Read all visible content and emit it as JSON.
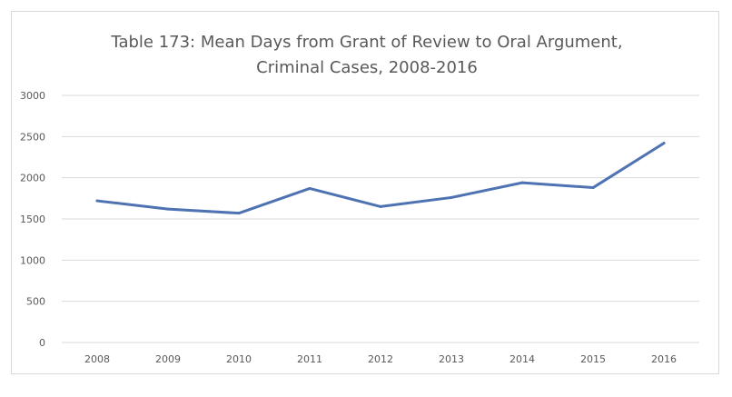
{
  "chart_data": {
    "type": "line",
    "title": "Table 173: Mean Days from Grant of Review to Oral Argument, Criminal Cases, 2008-2016",
    "title_lines": [
      "Table 173: Mean Days from Grant of Review to Oral Argument,",
      "Criminal Cases, 2008-2016"
    ],
    "xlabel": "",
    "ylabel": "",
    "categories": [
      "2008",
      "2009",
      "2010",
      "2011",
      "2012",
      "2013",
      "2014",
      "2015",
      "2016"
    ],
    "series": [
      {
        "values": [
          1720,
          1620,
          1570,
          1870,
          1650,
          1760,
          1940,
          1880,
          2420
        ]
      }
    ],
    "ylim": [
      0,
      3000
    ],
    "yticks": [
      0,
      500,
      1000,
      1500,
      2000,
      2500,
      3000
    ],
    "grid": true,
    "legend": "none",
    "line_color": "#4f72b3"
  }
}
